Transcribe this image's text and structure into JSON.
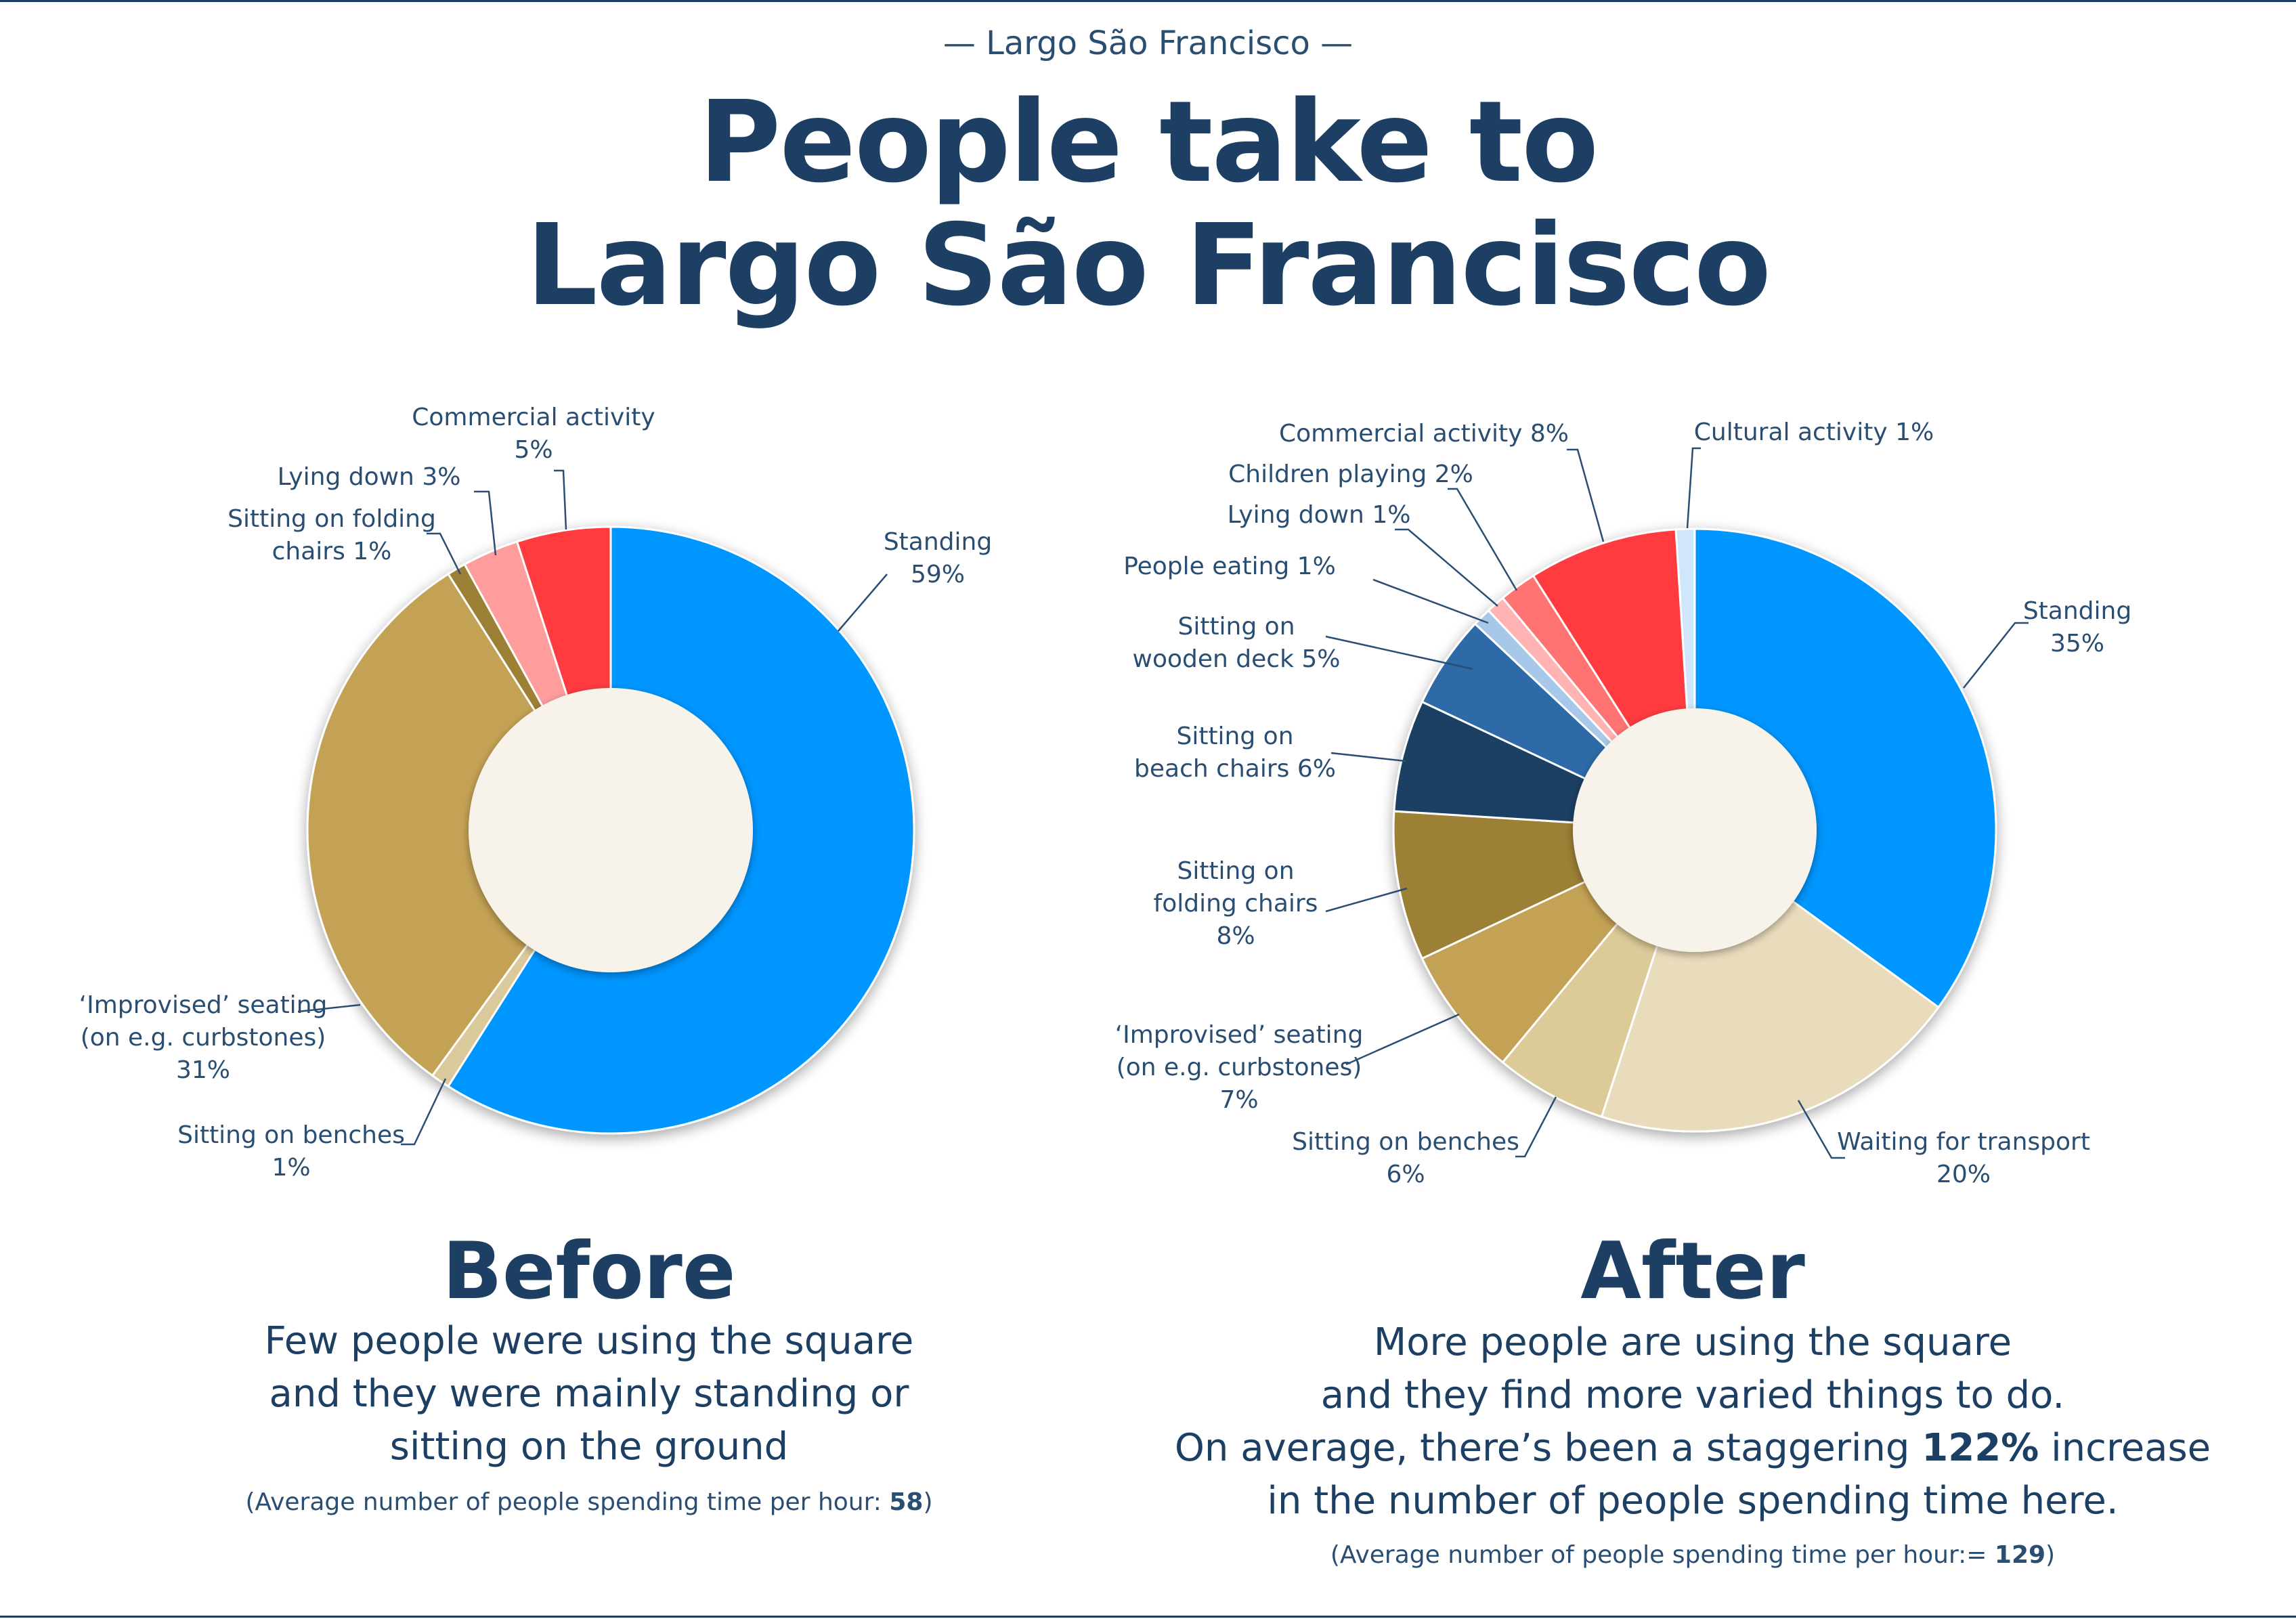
{
  "kicker": "— Largo São Francisco —",
  "title_line1": "People take to",
  "title_line2": "Largo São Francisco",
  "before": {
    "heading": "Before",
    "desc_lines": [
      "Few people were using the square",
      "and they were mainly standing or",
      "sitting on the ground"
    ],
    "note_prefix": "(Average number of people spending time per hour: ",
    "note_value": "58",
    "note_suffix": ")"
  },
  "after": {
    "heading": "After",
    "desc_line1": "More people are using the square",
    "desc_line2": "and they find more varied things to do.",
    "desc_line3_prefix": "On average, there’s been a staggering ",
    "desc_line3_bold": "122%",
    "desc_line3_suffix": " increase",
    "desc_line4": "in the number of people spending time here.",
    "note_prefix": "(Average number of people spending time per hour:= ",
    "note_value": "129",
    "note_suffix": ")"
  },
  "chart_data": [
    {
      "type": "pie",
      "subtype": "donut",
      "title": "Before",
      "slices": [
        {
          "label": "Standing",
          "value": 59,
          "label_lines": [
            "Standing",
            "59%"
          ],
          "color": "#0096ff"
        },
        {
          "label": "Sitting on benches",
          "value": 1,
          "label_lines": [
            "Sitting on benches",
            "1%"
          ],
          "color": "#dac99a"
        },
        {
          "label": "'Improvised' seating (on e.g. curbstones)",
          "value": 31,
          "label_lines": [
            "‘Improvised’ seating",
            "(on e.g. curbstones)",
            "31%"
          ],
          "color": "#c4a254"
        },
        {
          "label": "Sitting on folding chairs",
          "value": 1,
          "label_lines": [
            "Sitting on folding",
            "chairs 1%"
          ],
          "color": "#9c8036"
        },
        {
          "label": "Lying down",
          "value": 3,
          "label_lines": [
            "Lying down 3%"
          ],
          "color": "#ff9d9d"
        },
        {
          "label": "Commercial activity",
          "value": 5,
          "label_lines": [
            "Commercial activity",
            "5%"
          ],
          "color": "#ff3b41"
        }
      ]
    },
    {
      "type": "pie",
      "subtype": "donut",
      "title": "After",
      "slices": [
        {
          "label": "Standing",
          "value": 35,
          "label_lines": [
            "Standing",
            "35%"
          ],
          "color": "#0096ff"
        },
        {
          "label": "Waiting for transport",
          "value": 20,
          "label_lines": [
            "Waiting for transport",
            "20%"
          ],
          "color": "#e9dcbc"
        },
        {
          "label": "Sitting on benches",
          "value": 6,
          "label_lines": [
            "Sitting on benches",
            "6%"
          ],
          "color": "#dccb98"
        },
        {
          "label": "'Improvised' seating (on e.g. curbstones)",
          "value": 7,
          "label_lines": [
            "‘Improvised’ seating",
            "(on e.g. curbstones)",
            "7%"
          ],
          "color": "#c4a254"
        },
        {
          "label": "Sitting on folding chairs",
          "value": 8,
          "label_lines": [
            "Sitting on",
            "folding chairs",
            "8%"
          ],
          "color": "#9c8036"
        },
        {
          "label": "Sitting on beach chairs",
          "value": 6,
          "label_lines": [
            "Sitting on",
            "beach chairs 6%"
          ],
          "color": "#1c3f63"
        },
        {
          "label": "Sitting on wooden deck",
          "value": 5,
          "label_lines": [
            "Sitting on",
            "wooden deck 5%"
          ],
          "color": "#2f6aa8"
        },
        {
          "label": "People eating",
          "value": 1,
          "label_lines": [
            "People eating 1%"
          ],
          "color": "#a8c8ea"
        },
        {
          "label": "Lying down",
          "value": 1,
          "label_lines": [
            "Lying down 1%"
          ],
          "color": "#ffb3b3"
        },
        {
          "label": "Children playing",
          "value": 2,
          "label_lines": [
            "Children playing 2%"
          ],
          "color": "#ff7373"
        },
        {
          "label": "Commercial activity",
          "value": 8,
          "label_lines": [
            "Commercial activity 8%"
          ],
          "color": "#ff3b41"
        },
        {
          "label": "Cultural activity",
          "value": 1,
          "label_lines": [
            "Cultural activity 1%"
          ],
          "color": "#cfe6fb"
        }
      ]
    }
  ]
}
